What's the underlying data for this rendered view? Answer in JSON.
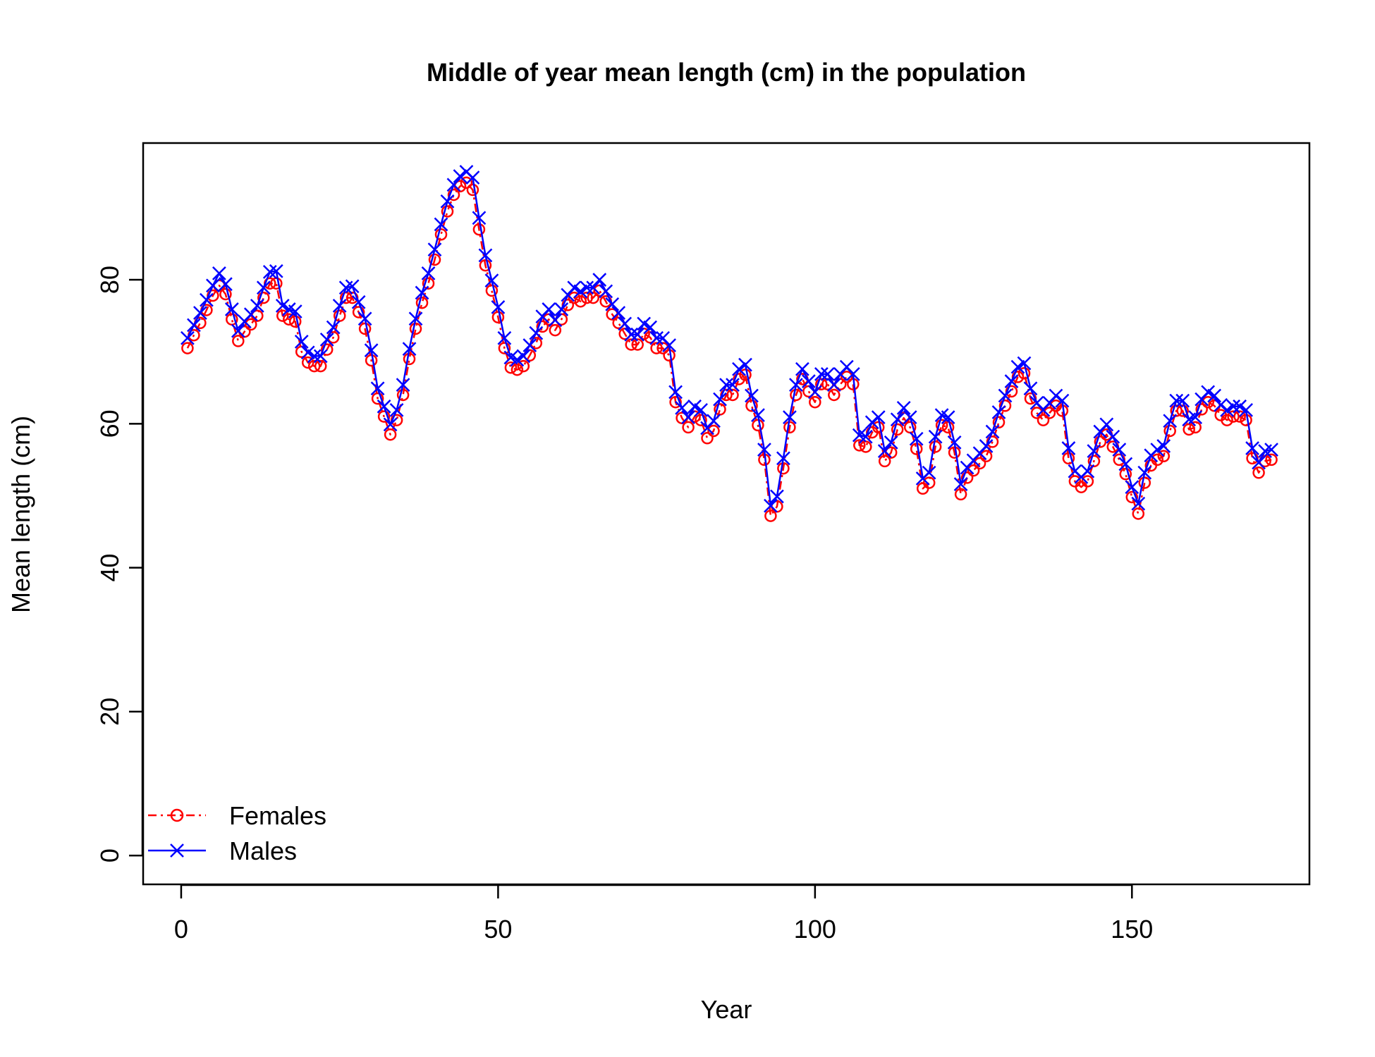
{
  "chart_data": {
    "type": "line",
    "title": "Middle of year mean length (cm) in the population",
    "xlabel": "Year",
    "ylabel": "Mean length (cm)",
    "xlim": [
      -6,
      178
    ],
    "ylim": [
      -4,
      99
    ],
    "x_ticks": [
      0,
      50,
      100,
      150
    ],
    "y_ticks": [
      0,
      20,
      40,
      60,
      80
    ],
    "legend": {
      "position": "bottom-left"
    },
    "x": [
      1,
      2,
      3,
      4,
      5,
      6,
      7,
      8,
      9,
      10,
      11,
      12,
      13,
      14,
      15,
      16,
      17,
      18,
      19,
      20,
      21,
      22,
      23,
      24,
      25,
      26,
      27,
      28,
      29,
      30,
      31,
      32,
      33,
      34,
      35,
      36,
      37,
      38,
      39,
      40,
      41,
      42,
      43,
      44,
      45,
      46,
      47,
      48,
      49,
      50,
      51,
      52,
      53,
      54,
      55,
      56,
      57,
      58,
      59,
      60,
      61,
      62,
      63,
      64,
      65,
      66,
      67,
      68,
      69,
      70,
      71,
      72,
      73,
      74,
      75,
      76,
      77,
      78,
      79,
      80,
      81,
      82,
      83,
      84,
      85,
      86,
      87,
      88,
      89,
      90,
      91,
      92,
      93,
      94,
      95,
      96,
      97,
      98,
      99,
      100,
      101,
      102,
      103,
      104,
      105,
      106,
      107,
      108,
      109,
      110,
      111,
      112,
      113,
      114,
      115,
      116,
      117,
      118,
      119,
      120,
      121,
      122,
      123,
      124,
      125,
      126,
      127,
      128,
      129,
      130,
      131,
      132,
      133,
      134,
      135,
      136,
      137,
      138,
      139,
      140,
      141,
      142,
      143,
      144,
      145,
      146,
      147,
      148,
      149,
      150,
      151,
      152,
      153,
      154,
      155,
      156,
      157,
      158,
      159,
      160,
      161,
      162,
      163,
      164,
      165,
      166,
      167,
      168,
      169,
      170,
      171,
      172
    ],
    "series": [
      {
        "name": "Females",
        "color": "#ff0000",
        "marker": "circle",
        "line_style": "dashed",
        "values": [
          70.5,
          72.3,
          74.0,
          75.8,
          77.8,
          79.2,
          78.0,
          74.5,
          71.5,
          72.8,
          73.8,
          75.0,
          77.5,
          79.5,
          79.5,
          75.0,
          74.5,
          74.2,
          70.0,
          68.5,
          68.0,
          68.0,
          70.3,
          72.0,
          75.0,
          77.5,
          77.5,
          75.5,
          73.2,
          68.8,
          63.5,
          61.0,
          58.5,
          60.5,
          64.0,
          69.0,
          73.2,
          76.8,
          79.5,
          82.8,
          86.3,
          89.5,
          91.8,
          93.0,
          93.5,
          92.5,
          87.0,
          82.0,
          78.5,
          74.8,
          70.5,
          67.8,
          67.5,
          68.0,
          69.5,
          71.2,
          73.5,
          74.5,
          73.0,
          74.5,
          76.5,
          77.5,
          77.0,
          77.5,
          77.5,
          78.5,
          77.0,
          75.2,
          74.0,
          72.5,
          71.0,
          71.0,
          72.5,
          72.0,
          70.5,
          70.5,
          69.5,
          63.0,
          60.8,
          59.5,
          61.0,
          60.5,
          58.0,
          59.0,
          62.0,
          64.0,
          64.0,
          66.2,
          66.8,
          62.5,
          59.8,
          55.0,
          47.2,
          48.5,
          53.8,
          59.5,
          64.0,
          66.2,
          64.5,
          63.0,
          65.5,
          65.5,
          64.0,
          65.5,
          66.5,
          65.5,
          57.0,
          56.8,
          58.8,
          59.5,
          54.8,
          56.0,
          59.2,
          60.8,
          59.5,
          56.5,
          51.0,
          51.8,
          56.8,
          59.8,
          59.5,
          56.0,
          50.2,
          52.5,
          53.5,
          54.5,
          55.5,
          57.5,
          60.2,
          62.5,
          64.5,
          66.5,
          67.0,
          63.5,
          61.5,
          60.5,
          61.5,
          62.5,
          61.8,
          55.2,
          52.0,
          51.2,
          52.0,
          54.8,
          57.5,
          58.5,
          56.8,
          55.0,
          53.0,
          49.8,
          47.5,
          51.8,
          54.2,
          55.0,
          55.5,
          59.0,
          61.8,
          61.8,
          59.2,
          59.5,
          62.0,
          63.0,
          62.5,
          61.2,
          60.5,
          61.0,
          61.0,
          60.5,
          55.2,
          53.2,
          54.8,
          55.0
        ]
      },
      {
        "name": "Males",
        "color": "#0000ff",
        "marker": "cross",
        "line_style": "solid",
        "values": [
          71.9,
          73.7,
          75.4,
          77.2,
          79.2,
          80.9,
          79.4,
          75.9,
          72.9,
          74.2,
          75.2,
          76.4,
          78.9,
          81.1,
          81.2,
          76.4,
          75.9,
          75.6,
          71.4,
          69.9,
          69.4,
          69.4,
          71.7,
          73.4,
          76.4,
          78.9,
          79.1,
          76.9,
          74.6,
          70.2,
          64.9,
          62.4,
          59.9,
          61.9,
          65.4,
          70.4,
          74.6,
          78.2,
          80.9,
          84.2,
          87.7,
          90.9,
          93.2,
          94.4,
          95.0,
          94.2,
          88.6,
          83.4,
          79.9,
          76.2,
          71.9,
          69.2,
          68.9,
          69.4,
          70.9,
          72.6,
          74.9,
          75.9,
          74.4,
          75.9,
          77.9,
          78.9,
          78.4,
          78.9,
          78.9,
          80.0,
          78.4,
          76.6,
          75.4,
          73.9,
          72.4,
          72.4,
          73.9,
          73.4,
          71.9,
          71.9,
          70.9,
          64.4,
          62.2,
          60.9,
          62.4,
          61.9,
          59.4,
          60.4,
          63.4,
          65.4,
          65.4,
          67.6,
          68.2,
          63.9,
          61.2,
          56.4,
          48.6,
          49.9,
          55.2,
          60.9,
          65.4,
          67.6,
          65.9,
          64.4,
          66.9,
          66.9,
          65.4,
          66.9,
          67.9,
          66.9,
          58.4,
          58.2,
          60.2,
          60.9,
          56.2,
          57.4,
          60.6,
          62.2,
          60.9,
          57.9,
          52.4,
          53.2,
          58.2,
          61.2,
          60.9,
          57.4,
          51.6,
          53.9,
          54.9,
          55.9,
          56.9,
          58.9,
          61.6,
          63.9,
          65.9,
          67.9,
          68.4,
          64.9,
          62.9,
          61.9,
          62.9,
          63.9,
          63.2,
          56.6,
          53.4,
          52.6,
          53.4,
          56.2,
          58.9,
          59.9,
          58.2,
          56.4,
          54.4,
          51.2,
          48.9,
          53.2,
          55.6,
          56.4,
          56.9,
          60.4,
          63.2,
          63.2,
          60.6,
          60.9,
          63.4,
          64.4,
          63.9,
          62.6,
          61.9,
          62.4,
          62.4,
          61.9,
          56.6,
          54.6,
          56.2,
          56.4
        ]
      }
    ]
  }
}
